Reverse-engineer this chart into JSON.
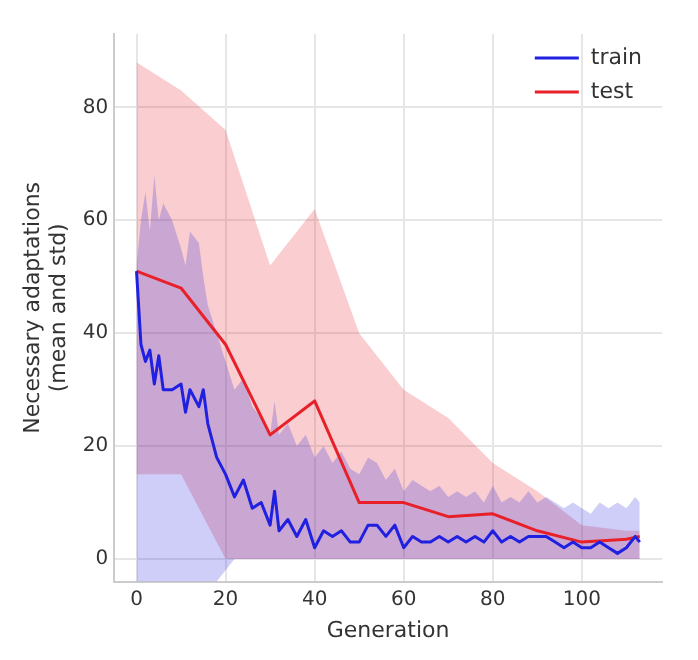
{
  "chart_data": {
    "type": "line",
    "xlabel": "Generation",
    "ylabel": "Necessary adaptations\n(mean and std)",
    "xlim": [
      -5,
      118
    ],
    "ylim": [
      -4,
      93
    ],
    "xticks": [
      0,
      20,
      40,
      60,
      80,
      100
    ],
    "yticks": [
      0,
      20,
      40,
      60,
      80
    ],
    "grid": true,
    "legend": "top right",
    "series": [
      {
        "name": "train",
        "color": "#2020e0",
        "x": [
          0,
          1,
          2,
          3,
          4,
          5,
          6,
          8,
          10,
          11,
          12,
          14,
          15,
          16,
          18,
          20,
          22,
          24,
          26,
          28,
          30,
          31,
          32,
          34,
          36,
          38,
          40,
          42,
          44,
          46,
          48,
          50,
          52,
          54,
          56,
          58,
          60,
          62,
          64,
          66,
          68,
          70,
          72,
          74,
          76,
          78,
          80,
          82,
          84,
          86,
          88,
          90,
          92,
          94,
          96,
          98,
          100,
          102,
          104,
          106,
          108,
          110,
          112,
          113
        ],
        "values": [
          51,
          38,
          35,
          37,
          31,
          36,
          30,
          30,
          31,
          26,
          30,
          27,
          30,
          24,
          18,
          15,
          11,
          14,
          9,
          10,
          6,
          12,
          5,
          7,
          4,
          7,
          2,
          5,
          4,
          5,
          3,
          3,
          6,
          6,
          4,
          6,
          2,
          4,
          3,
          3,
          4,
          3,
          4,
          3,
          4,
          3,
          5,
          3,
          4,
          3,
          4,
          4,
          4,
          3,
          2,
          3,
          2,
          2,
          3,
          2,
          1,
          2,
          4,
          3
        ],
        "upper": [
          52,
          60,
          65,
          58,
          68,
          60,
          63,
          60,
          55,
          52,
          58,
          56,
          50,
          45,
          40,
          35,
          30,
          32,
          27,
          25,
          22,
          28,
          22,
          24,
          20,
          22,
          18,
          20,
          17,
          19,
          16,
          15,
          18,
          17,
          14,
          16,
          12,
          14,
          13,
          12,
          13,
          11,
          12,
          11,
          12,
          10,
          13,
          10,
          11,
          10,
          12,
          10,
          11,
          10,
          9,
          10,
          9,
          8,
          10,
          9,
          10,
          9,
          11,
          10
        ],
        "lower": [
          -4,
          -4,
          -4,
          -4,
          -4,
          -4,
          -4,
          -4,
          -4,
          -4,
          -4,
          -4,
          -4,
          -4,
          -4,
          -2,
          0,
          0,
          0,
          0,
          0,
          0,
          0,
          0,
          0,
          0,
          0,
          0,
          0,
          0,
          0,
          0,
          0,
          0,
          0,
          0,
          0,
          0,
          0,
          0,
          0,
          0,
          0,
          0,
          0,
          0,
          0,
          0,
          0,
          0,
          0,
          0,
          0,
          0,
          0,
          0,
          0,
          0,
          0,
          0,
          0,
          0,
          0,
          0
        ]
      },
      {
        "name": "test",
        "color": "#e8202a",
        "x": [
          0,
          10,
          20,
          30,
          40,
          50,
          60,
          70,
          80,
          90,
          100,
          110,
          113
        ],
        "values": [
          51,
          48,
          38,
          22,
          28,
          10,
          10,
          7.5,
          8,
          5,
          3,
          3.5,
          4
        ],
        "upper": [
          88,
          83,
          76,
          52,
          62,
          40,
          30,
          25,
          17,
          12,
          6,
          5,
          5
        ],
        "lower": [
          15,
          15,
          0,
          0,
          0,
          0,
          0,
          0,
          0,
          0,
          0,
          0,
          0
        ]
      }
    ]
  }
}
